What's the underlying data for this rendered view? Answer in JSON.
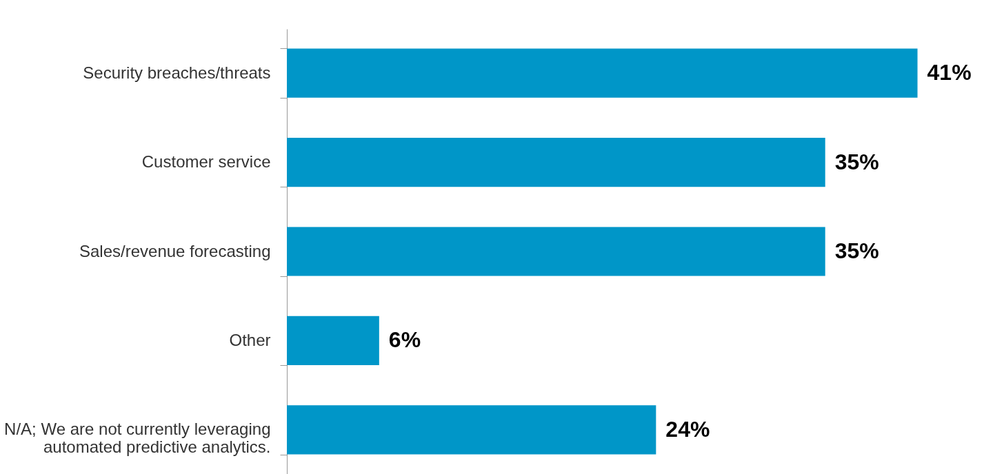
{
  "chart_data": {
    "type": "bar",
    "orientation": "horizontal",
    "categories": [
      "Security breaches/threats",
      "Customer service",
      "Sales/revenue forecasting",
      "Other",
      "N/A; We are not currently leveraging\nautomated predictive analytics."
    ],
    "values": [
      41,
      35,
      35,
      6,
      24
    ],
    "value_labels": [
      "41%",
      "35%",
      "35%",
      "6%",
      "24%"
    ],
    "color": "#0096c8",
    "tick_labels": "y"
  }
}
